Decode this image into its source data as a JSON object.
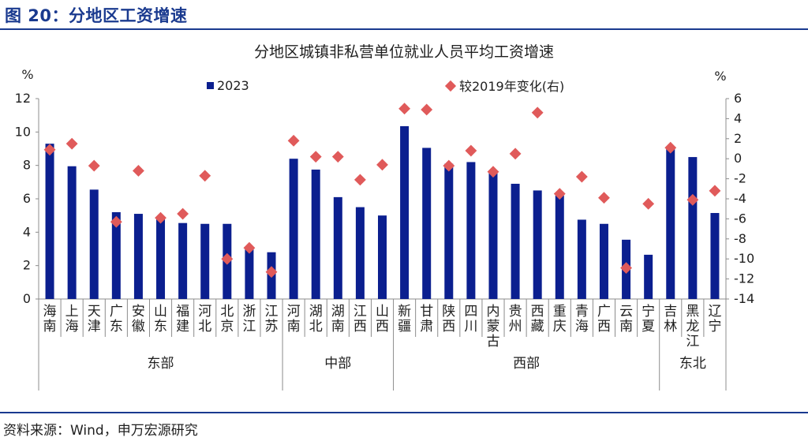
{
  "figure": {
    "title": "图 20：分地区工资增速",
    "source": "资料来源：Wind，申万宏源研究"
  },
  "chart_data": {
    "type": "bar",
    "title": "分地区城镇非私营单位就业人员平均工资增速",
    "left_unit": "%",
    "right_unit": "%",
    "ylim_left": [
      0,
      12
    ],
    "yticks_left": [
      0,
      2,
      4,
      6,
      8,
      10,
      12
    ],
    "ylim_right": [
      -14,
      6
    ],
    "yticks_right": [
      -14,
      -12,
      -10,
      -8,
      -6,
      -4,
      -2,
      0,
      2,
      4,
      6
    ],
    "categories": [
      "海南",
      "上海",
      "天津",
      "广东",
      "安徽",
      "山东",
      "福建",
      "河北",
      "北京",
      "浙江",
      "江苏",
      "河南",
      "湖北",
      "湖南",
      "江西",
      "山西",
      "新疆",
      "甘肃",
      "陕西",
      "四川",
      "内蒙古",
      "贵州",
      "西藏",
      "重庆",
      "青海",
      "广西",
      "云南",
      "宁夏",
      "吉林",
      "黑龙江",
      "辽宁"
    ],
    "groups": [
      {
        "name": "东部",
        "count": 11
      },
      {
        "name": "中部",
        "count": 5
      },
      {
        "name": "西部",
        "count": 12
      },
      {
        "name": "东北",
        "count": 3
      }
    ],
    "series": [
      {
        "name": "2023",
        "type": "bar",
        "axis": "left",
        "color": "#0b1f8f",
        "values": [
          9.3,
          7.95,
          6.55,
          5.2,
          5.1,
          4.9,
          4.55,
          4.5,
          4.5,
          3.1,
          2.8,
          8.4,
          7.75,
          6.1,
          5.5,
          5.0,
          10.35,
          9.05,
          8.1,
          8.2,
          7.7,
          6.9,
          6.5,
          6.2,
          4.75,
          4.5,
          3.55,
          2.65,
          9.0,
          8.5,
          5.15
        ]
      },
      {
        "name": "较2019年变化(右)",
        "type": "scatter",
        "axis": "right",
        "color": "#e05a5a",
        "values": [
          0.9,
          1.5,
          -0.7,
          -6.3,
          -1.2,
          -5.9,
          -5.5,
          -1.7,
          -10.0,
          -8.9,
          -11.3,
          1.8,
          0.2,
          0.2,
          -2.1,
          -0.6,
          5.0,
          4.9,
          -0.7,
          0.8,
          -1.3,
          0.5,
          4.6,
          -3.5,
          -1.8,
          -3.9,
          -10.9,
          -4.5,
          1.1,
          -4.1,
          -3.2
        ]
      }
    ]
  }
}
